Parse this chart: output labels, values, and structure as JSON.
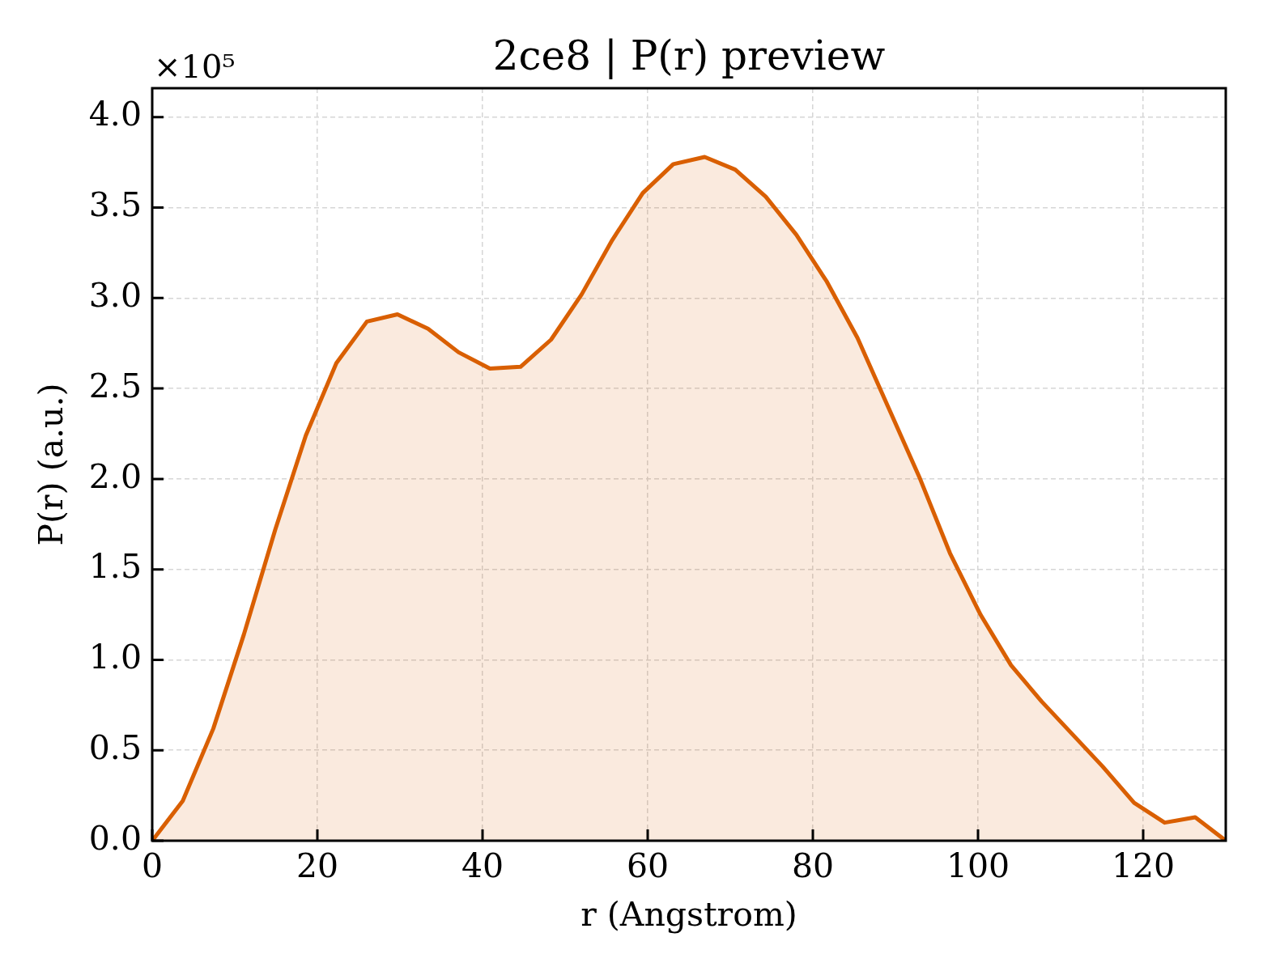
{
  "chart_data": {
    "type": "area",
    "title": "2ce8 | P(r) preview",
    "xlabel": "r (Angstrom)",
    "ylabel": "P(r) (a.u.)",
    "annotations": [
      "×10⁵"
    ],
    "x": [
      0,
      3.7,
      7.4,
      11.1,
      14.9,
      18.6,
      22.3,
      26.0,
      29.7,
      33.4,
      37.1,
      40.9,
      44.6,
      48.3,
      52.0,
      55.7,
      59.4,
      63.1,
      66.9,
      70.6,
      74.3,
      78.0,
      81.7,
      85.4,
      89.1,
      92.9,
      96.6,
      100.3,
      104.0,
      107.7,
      111.4,
      115.1,
      118.9,
      122.6,
      126.3,
      130.0
    ],
    "values": [
      0,
      0.22,
      0.62,
      1.14,
      1.72,
      2.24,
      2.64,
      2.87,
      2.91,
      2.83,
      2.7,
      2.61,
      2.62,
      2.77,
      3.02,
      3.32,
      3.58,
      3.74,
      3.78,
      3.71,
      3.56,
      3.35,
      3.09,
      2.78,
      2.4,
      2.01,
      1.59,
      1.25,
      0.97,
      0.77,
      0.59,
      0.41,
      0.21,
      0.1,
      0.13,
      0
    ],
    "color": "#d95f02",
    "xlim": [
      0,
      130
    ],
    "xticks": [
      0,
      20,
      40,
      60,
      80,
      100,
      120
    ],
    "ylim": [
      0,
      4.16
    ],
    "yticks": [
      {
        "value": 0,
        "label": "0.0"
      },
      0.5,
      {
        "value": 1,
        "label": "1.0"
      },
      1.5,
      {
        "value": 2,
        "label": "2.0"
      },
      2.5,
      {
        "value": 3,
        "label": "3.0"
      },
      3.5,
      {
        "value": 4,
        "label": "4.0"
      }
    ],
    "grid": true,
    "legend": false,
    "marker": "none",
    "line_style": "solid"
  }
}
